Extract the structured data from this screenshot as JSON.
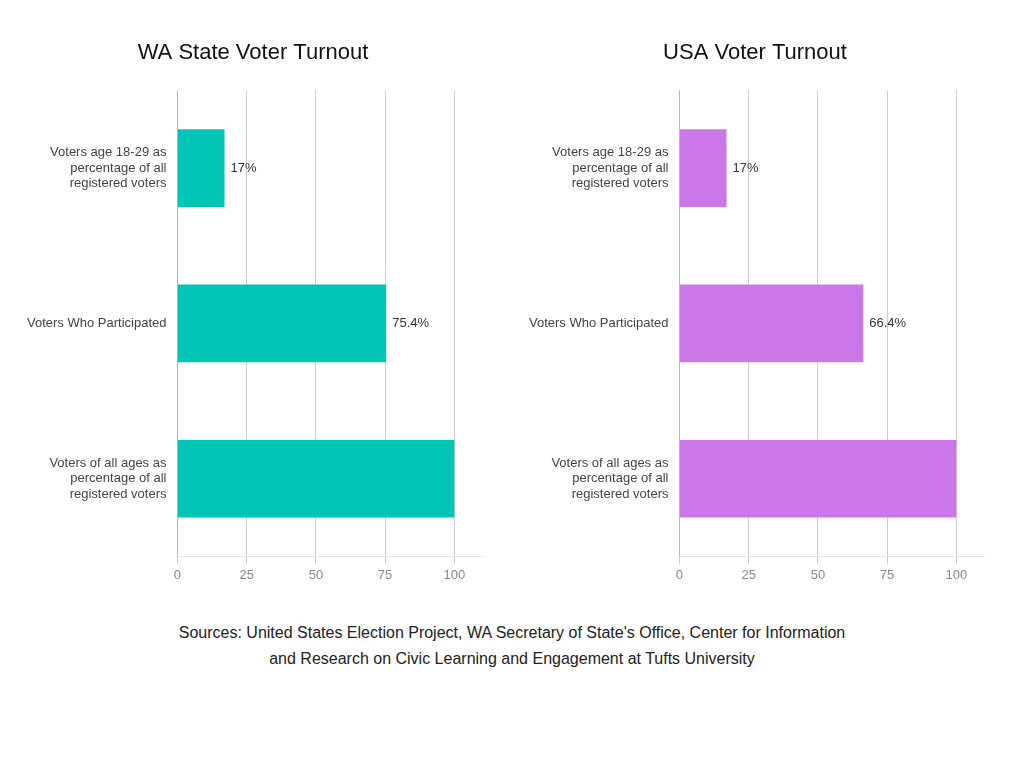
{
  "chart_data": [
    {
      "type": "bar",
      "orientation": "horizontal",
      "title": "WA State Voter Turnout",
      "categories": [
        "Voters age 18-29 as\npercentage of all\nregistered voters",
        "Voters Who Participated",
        "Voters of all ages as\npercentage of all\nregistered voters"
      ],
      "values": [
        17,
        75.4,
        100
      ],
      "value_labels": [
        "17%",
        "75.4%",
        null
      ],
      "data_labels": true,
      "color": "#00C5B5",
      "xlim": [
        0,
        110
      ],
      "xticks": [
        0,
        25,
        50,
        75,
        100
      ],
      "grid": true
    },
    {
      "type": "bar",
      "orientation": "horizontal",
      "title": "USA Voter Turnout",
      "categories": [
        "Voters age 18-29 as\npercentage of all\nregistered voters",
        "Voters Who Participated",
        "Voters of all ages as\npercentage of all\nregistered voters"
      ],
      "values": [
        17,
        66.4,
        100
      ],
      "value_labels": [
        "17%",
        "66.4%",
        null
      ],
      "data_labels": true,
      "color": "#CC77E8",
      "xlim": [
        0,
        110
      ],
      "xticks": [
        0,
        25,
        50,
        75,
        100
      ],
      "grid": true
    }
  ],
  "annotations": [
    "Sources: United States Election Project, WA Secretary of State's Office, Center for Information\nand Research on Civic Learning and Engagement at Tufts University"
  ]
}
